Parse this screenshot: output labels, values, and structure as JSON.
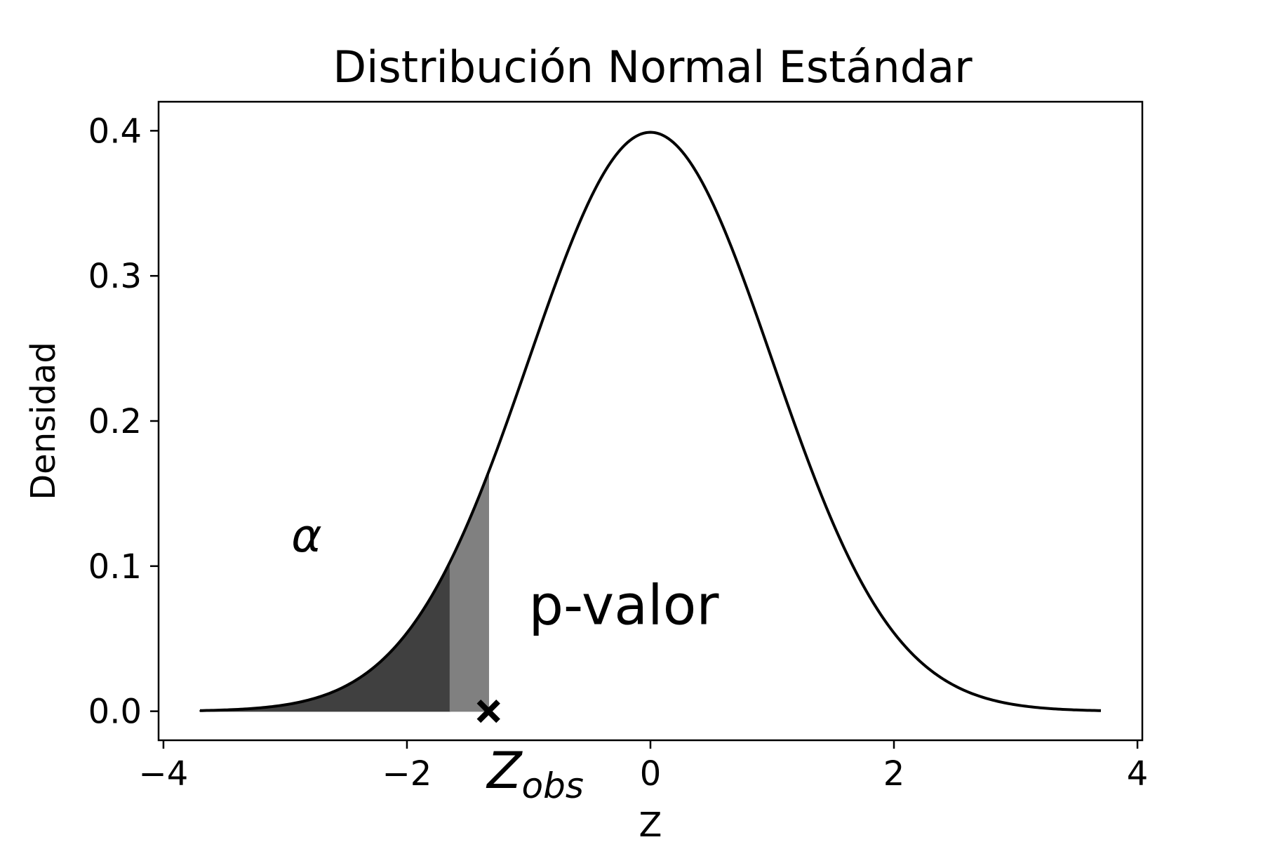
{
  "chart_data": {
    "type": "line",
    "title": "Distribución Normal Estándar",
    "xlabel": "Z",
    "ylabel": "Densidad",
    "xlim": [
      -4.04,
      4.04
    ],
    "ylim": [
      -0.02,
      0.42
    ],
    "xticks": [
      -4,
      -2,
      0,
      2,
      4
    ],
    "xtick_labels": [
      "−4",
      "−2",
      "0",
      "2",
      "4"
    ],
    "yticks": [
      0.0,
      0.1,
      0.2,
      0.3,
      0.4
    ],
    "ytick_labels": [
      "0.0",
      "0.1",
      "0.2",
      "0.3",
      "0.4"
    ],
    "grid": false,
    "curve": {
      "distribution": "normal",
      "mean": 0,
      "std": 1,
      "x_range": [
        -3.7,
        3.7
      ],
      "color": "#000000"
    },
    "shaded_regions": [
      {
        "x_from": -3.7,
        "x_to": -1.645,
        "color": "#404040"
      },
      {
        "x_from": -1.645,
        "x_to": -1.33,
        "color": "#808080"
      }
    ],
    "marker": {
      "x": -1.33,
      "y": 0.0,
      "symbol": "x",
      "color": "#000000"
    },
    "annotations": {
      "alpha": {
        "text": "α",
        "x": -2.95,
        "y": 0.11
      },
      "p_value": {
        "text": "p-valor",
        "x": -1.0,
        "y": 0.06
      },
      "z_obs_main": "Z",
      "z_obs_sub": "obs"
    }
  }
}
